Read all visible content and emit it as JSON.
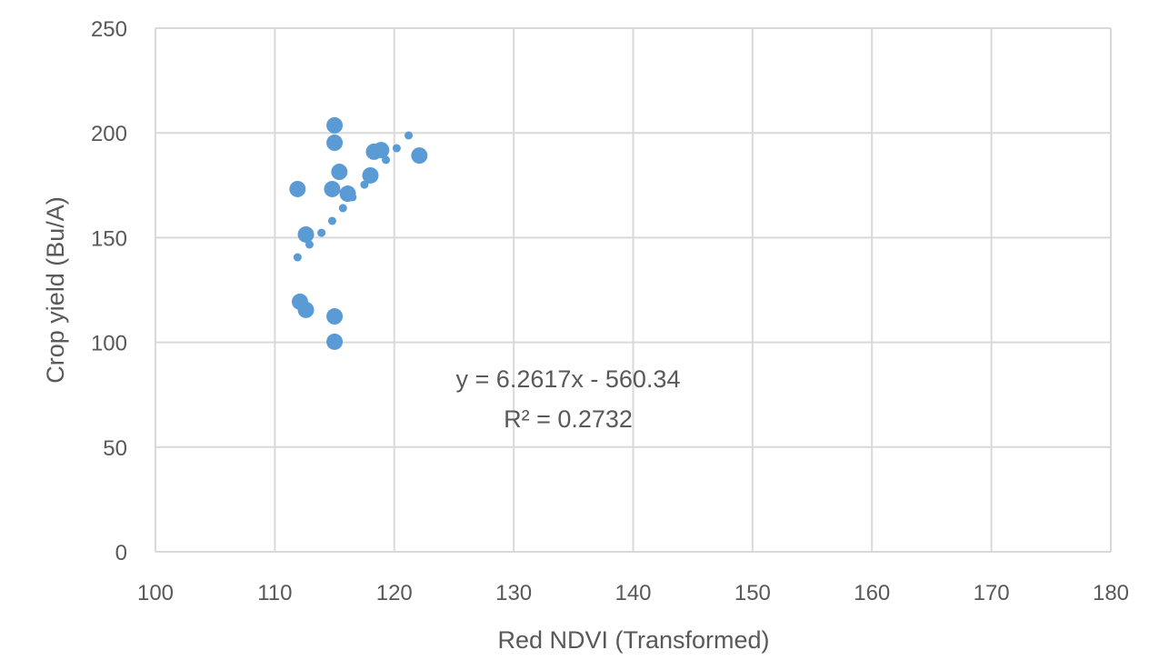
{
  "chart_data": {
    "type": "scatter",
    "title": "",
    "xlabel": "Red NDVI (Transformed)",
    "ylabel": "Crop yield (Bu/A)",
    "xlim": [
      100,
      180
    ],
    "ylim": [
      0,
      250
    ],
    "xticks": [
      100,
      110,
      120,
      130,
      140,
      150,
      160,
      170,
      180
    ],
    "yticks": [
      0,
      50,
      100,
      150,
      200,
      250
    ],
    "grid": true,
    "legend": "none",
    "marker_color": "#5B9BD5",
    "grid_color": "#D9D9D9",
    "trendline_label": {
      "equation": "y = 6.2617x - 560.34",
      "r_squared": "R² = 0.2732"
    },
    "points": [
      {
        "x": 115.0,
        "y": 203.6,
        "size": "large"
      },
      {
        "x": 115.0,
        "y": 195.3,
        "size": "large"
      },
      {
        "x": 115.4,
        "y": 181.4,
        "size": "large"
      },
      {
        "x": 111.9,
        "y": 173.2,
        "size": "large"
      },
      {
        "x": 114.8,
        "y": 173.2,
        "size": "large"
      },
      {
        "x": 116.1,
        "y": 171.0,
        "size": "large"
      },
      {
        "x": 118.0,
        "y": 179.7,
        "size": "large"
      },
      {
        "x": 118.3,
        "y": 191.0,
        "size": "large"
      },
      {
        "x": 118.9,
        "y": 191.8,
        "size": "large"
      },
      {
        "x": 122.1,
        "y": 189.2,
        "size": "large"
      },
      {
        "x": 112.6,
        "y": 151.5,
        "size": "large"
      },
      {
        "x": 112.1,
        "y": 119.4,
        "size": "large"
      },
      {
        "x": 112.6,
        "y": 115.5,
        "size": "large"
      },
      {
        "x": 115.0,
        "y": 112.4,
        "size": "large"
      },
      {
        "x": 115.0,
        "y": 100.3,
        "size": "large"
      },
      {
        "x": 121.2,
        "y": 198.8,
        "size": "small"
      },
      {
        "x": 120.2,
        "y": 192.7,
        "size": "small"
      },
      {
        "x": 119.3,
        "y": 187.1,
        "size": "small"
      },
      {
        "x": 117.5,
        "y": 175.3,
        "size": "small"
      },
      {
        "x": 116.5,
        "y": 169.3,
        "size": "small"
      },
      {
        "x": 115.7,
        "y": 164.1,
        "size": "small"
      },
      {
        "x": 114.8,
        "y": 158.0,
        "size": "small"
      },
      {
        "x": 113.9,
        "y": 152.3,
        "size": "small"
      },
      {
        "x": 112.9,
        "y": 146.7,
        "size": "small"
      },
      {
        "x": 111.9,
        "y": 140.6,
        "size": "small"
      }
    ]
  }
}
